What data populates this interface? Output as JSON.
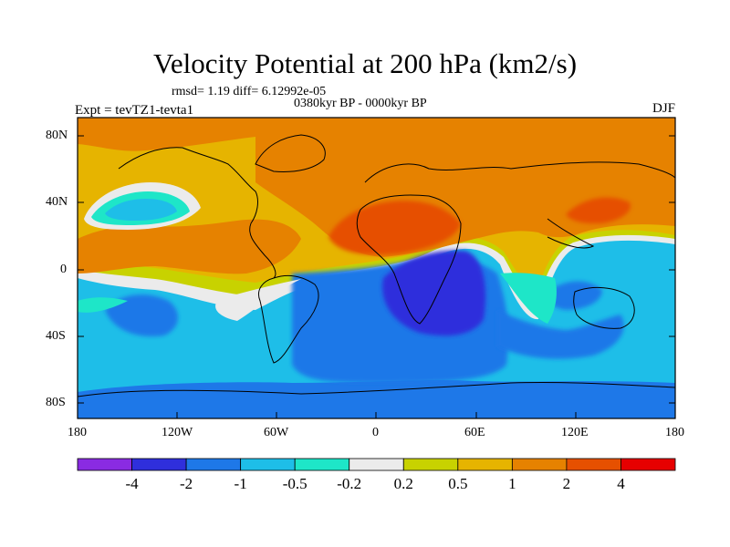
{
  "title": "Velocity Potential at 200 hPa (km2/s)",
  "stats": "rmsd= 1.19 diff= 6.12992e-05",
  "period": "0380kyr BP - 0000kyr BP",
  "experiment": "Expt = tevTZ1-tevta1",
  "season": "DJF",
  "lat_ticks": [
    "80N",
    "40N",
    "0",
    "40S",
    "80S"
  ],
  "lon_ticks": [
    "180",
    "120W",
    "60W",
    "0",
    "60E",
    "120E",
    "180"
  ],
  "colorbar": {
    "colors": [
      "#8a2be2",
      "#2f2fdc",
      "#1e78e8",
      "#1ebee8",
      "#1ee6c8",
      "#ebebeb",
      "#c8d200",
      "#e6b400",
      "#e68200",
      "#e65000",
      "#e60000"
    ],
    "labels": [
      "-4",
      "-2",
      "-1",
      "-0.5",
      "-0.2",
      "0.2",
      "0.5",
      "1",
      "2",
      "4"
    ]
  },
  "map_colors": {
    "ocean_border": "#000000"
  }
}
